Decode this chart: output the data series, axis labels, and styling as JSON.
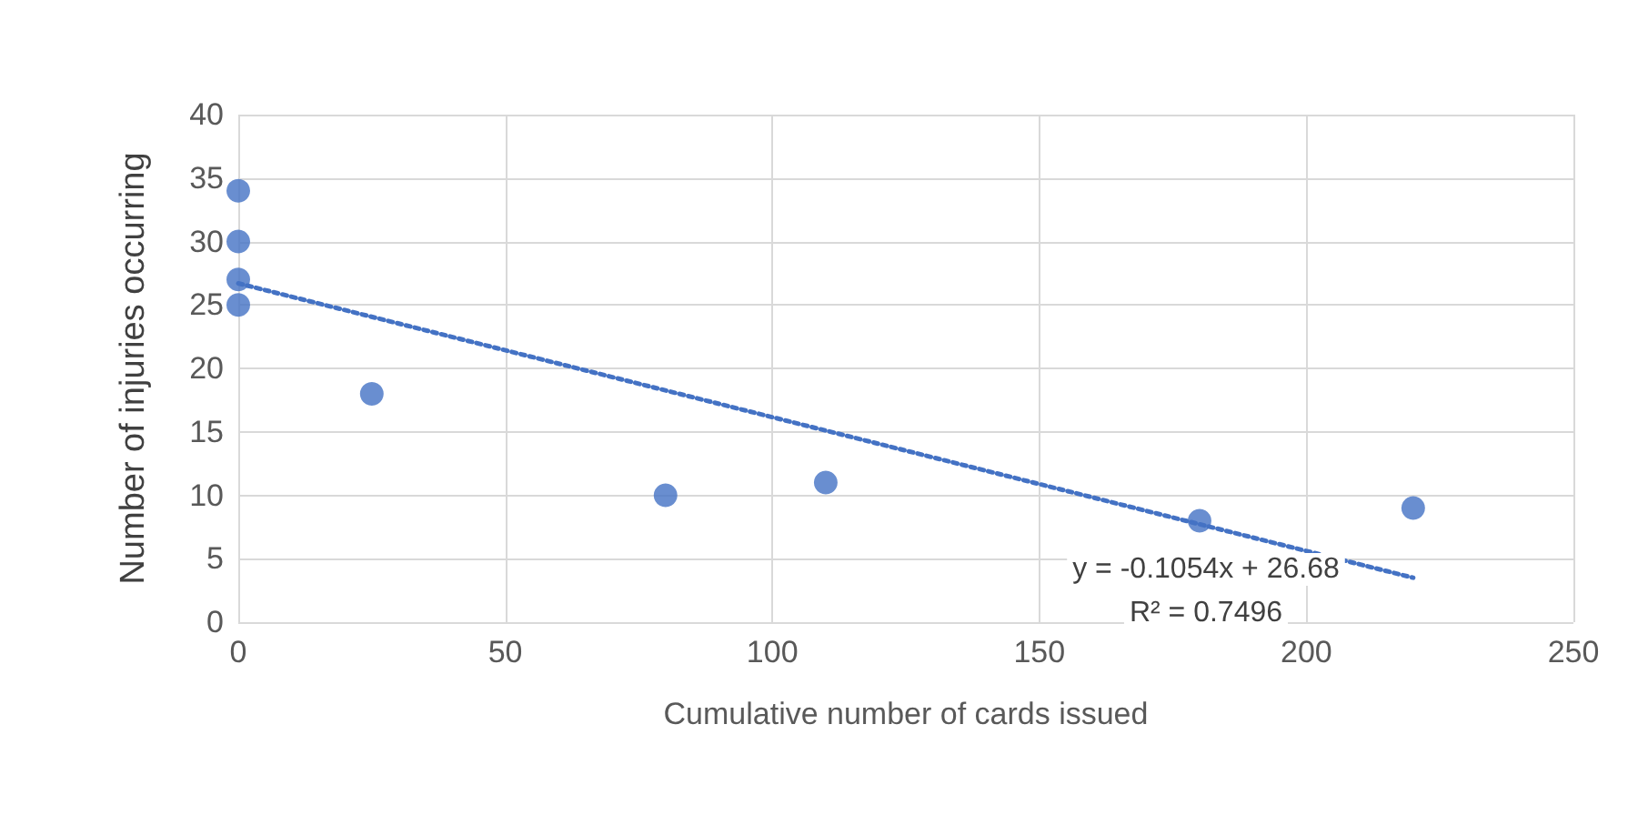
{
  "chart_data": {
    "type": "scatter",
    "xlabel": "Cumulative number of cards issued",
    "ylabel": "Number of injuries occurring",
    "xlim": [
      0,
      250
    ],
    "xticks": [
      0,
      50,
      100,
      150,
      200,
      250
    ],
    "ylim": [
      0,
      40
    ],
    "yticks": [
      0,
      5,
      10,
      15,
      20,
      25,
      30,
      35,
      40
    ],
    "grid": true,
    "marker": "circle",
    "series": [
      {
        "color": "#4472c4",
        "x": [
          0,
          0,
          0,
          0,
          25,
          80,
          110,
          180,
          220
        ],
        "values": [
          34,
          30,
          27,
          25,
          18,
          10,
          11,
          8,
          9
        ]
      },
      {
        "type": "line",
        "color": "#4472c4",
        "line_style": "dotted",
        "marker": "none",
        "x": [
          0,
          220
        ],
        "values": [
          26.7,
          3.5
        ]
      }
    ],
    "annotations": [
      "y = -0.1054x + 26.68",
      "R² = 0.7496"
    ]
  }
}
